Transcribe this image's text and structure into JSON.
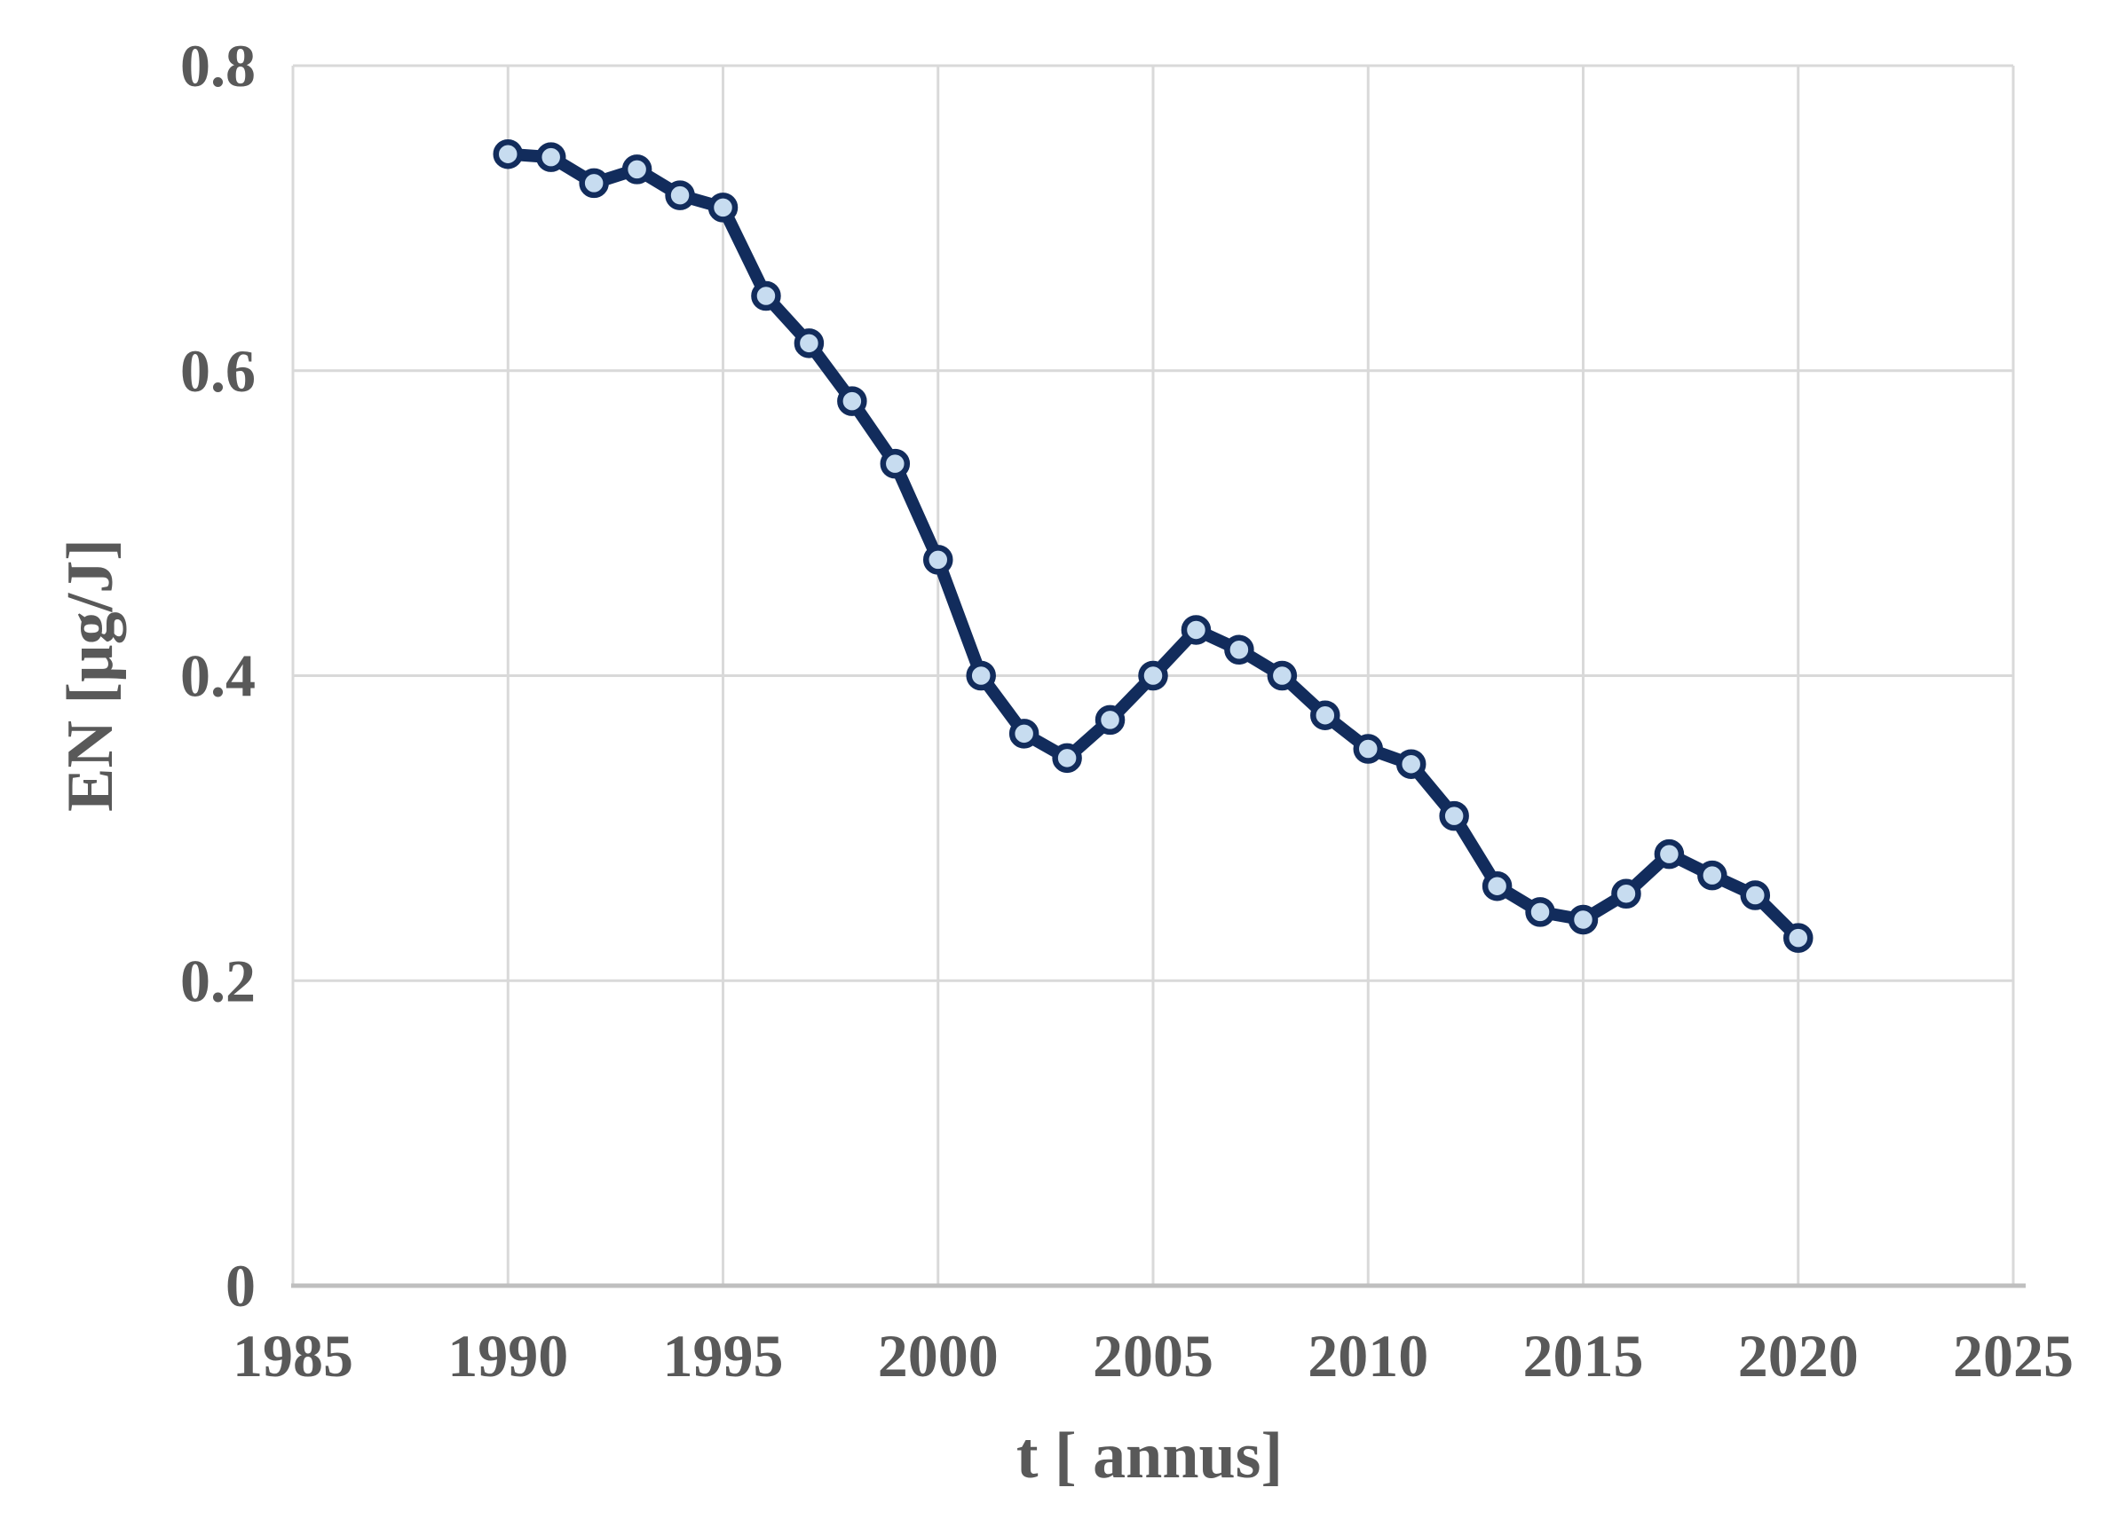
{
  "chart_data": {
    "type": "line",
    "title": "",
    "xlabel": "t [ annus]",
    "ylabel": "EN [µg/J]",
    "x": [
      1990,
      1991,
      1992,
      1993,
      1994,
      1995,
      1996,
      1997,
      1998,
      1999,
      2000,
      2001,
      2002,
      2003,
      2004,
      2005,
      2006,
      2007,
      2008,
      2009,
      2010,
      2011,
      2012,
      2013,
      2014,
      2015,
      2016,
      2017,
      2018,
      2019,
      2020
    ],
    "values": [
      0.742,
      0.74,
      0.723,
      0.732,
      0.715,
      0.707,
      0.649,
      0.618,
      0.58,
      0.539,
      0.476,
      0.4,
      0.362,
      0.346,
      0.371,
      0.4,
      0.43,
      0.417,
      0.4,
      0.374,
      0.352,
      0.342,
      0.308,
      0.262,
      0.245,
      0.24,
      0.257,
      0.283,
      0.269,
      0.256,
      0.228
    ],
    "xlim": [
      1985,
      2025
    ],
    "ylim": [
      0,
      0.8
    ],
    "x_tick_values": [
      1985,
      1990,
      1995,
      2000,
      2005,
      2010,
      2015,
      2020,
      2025
    ],
    "x_tick_labels": [
      "1985",
      "1990",
      "1995",
      "2000",
      "2005",
      "2010",
      "2015",
      "2020",
      "2025"
    ],
    "y_tick_values": [
      0,
      0.2,
      0.4,
      0.6,
      0.8
    ],
    "y_tick_labels": [
      "0",
      "0.2",
      "0.4",
      "0.6",
      "0.8"
    ],
    "grid": true,
    "legend": "none",
    "marker": "circle",
    "colors": {
      "line": "#122C5C",
      "marker_fill": "#C7DCF0",
      "marker_stroke": "#122C5C",
      "gridline": "#D9D9D9",
      "axis_line": "#BFBFBF",
      "tick_text": "#595959",
      "background": "#FFFFFF"
    }
  }
}
